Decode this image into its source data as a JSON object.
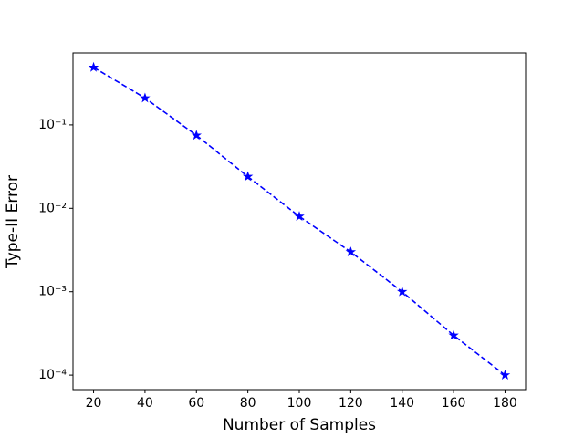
{
  "chart_data": {
    "type": "line",
    "x_label": "Number of Samples",
    "y_label": "Type-II Error",
    "x": [
      20,
      40,
      60,
      80,
      100,
      120,
      140,
      160,
      180
    ],
    "series": [
      {
        "color": "#0000ff",
        "values": [
          0.49,
          0.21,
          0.075,
          0.024,
          0.008,
          0.003,
          0.001,
          0.0003,
          0.0001
        ]
      }
    ],
    "xlim": [
      12,
      188
    ],
    "xticks": [
      20,
      40,
      60,
      80,
      100,
      120,
      140,
      160,
      180
    ],
    "ylim": [
      6.7e-05,
      0.73
    ],
    "y_log": true,
    "yticks": [
      {
        "value": 0.1,
        "label": "10⁻¹"
      },
      {
        "value": 0.01,
        "label": "10⁻²"
      },
      {
        "value": 0.001,
        "label": "10⁻³"
      },
      {
        "value": 0.0001,
        "label": "10⁻⁴"
      }
    ]
  }
}
